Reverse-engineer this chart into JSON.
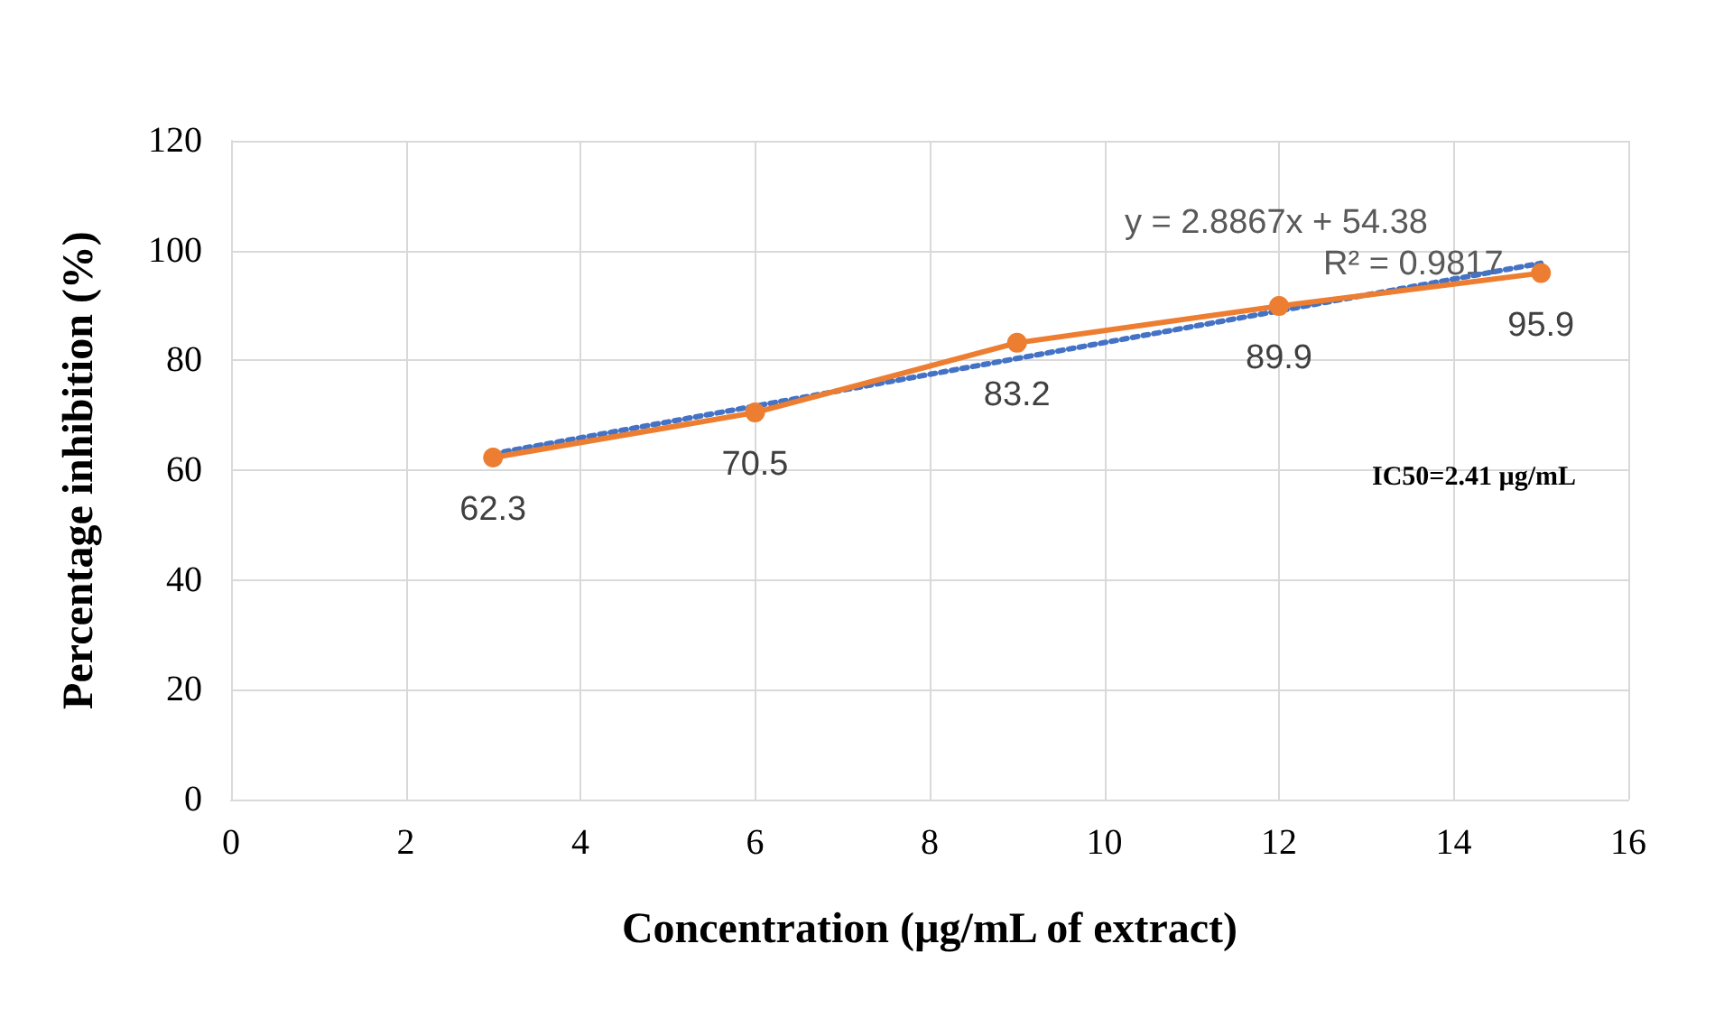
{
  "chart_data": {
    "type": "line",
    "xlabel": "Concentration (µg/mL of extract)",
    "ylabel": "Percentage inhibition (%)",
    "x": [
      3,
      6,
      9,
      12,
      15
    ],
    "series": [
      {
        "color": "#ed7d31",
        "values": [
          62.3,
          70.5,
          83.2,
          89.9,
          95.9
        ],
        "value_labels": [
          "62.3",
          "70.5",
          "83.2",
          "89.9",
          "95.9"
        ],
        "marker": "circle",
        "line_style": "solid"
      },
      {
        "type": "line",
        "color": "#4472c4",
        "x": [
          3,
          15
        ],
        "values": [
          63.0,
          97.7
        ],
        "marker": "none",
        "line_style": "dotted"
      }
    ],
    "annotations": [
      "y = 2.8867x + 54.38",
      "R² = 0.9817",
      "IC50=2.41 µg/mL"
    ],
    "xlim": [
      0,
      16
    ],
    "xticks": [
      0,
      2,
      4,
      6,
      8,
      10,
      12,
      14,
      16
    ],
    "ylim": [
      0,
      120
    ],
    "yticks": [
      0,
      20,
      40,
      60,
      80,
      100,
      120
    ],
    "grid": true
  }
}
